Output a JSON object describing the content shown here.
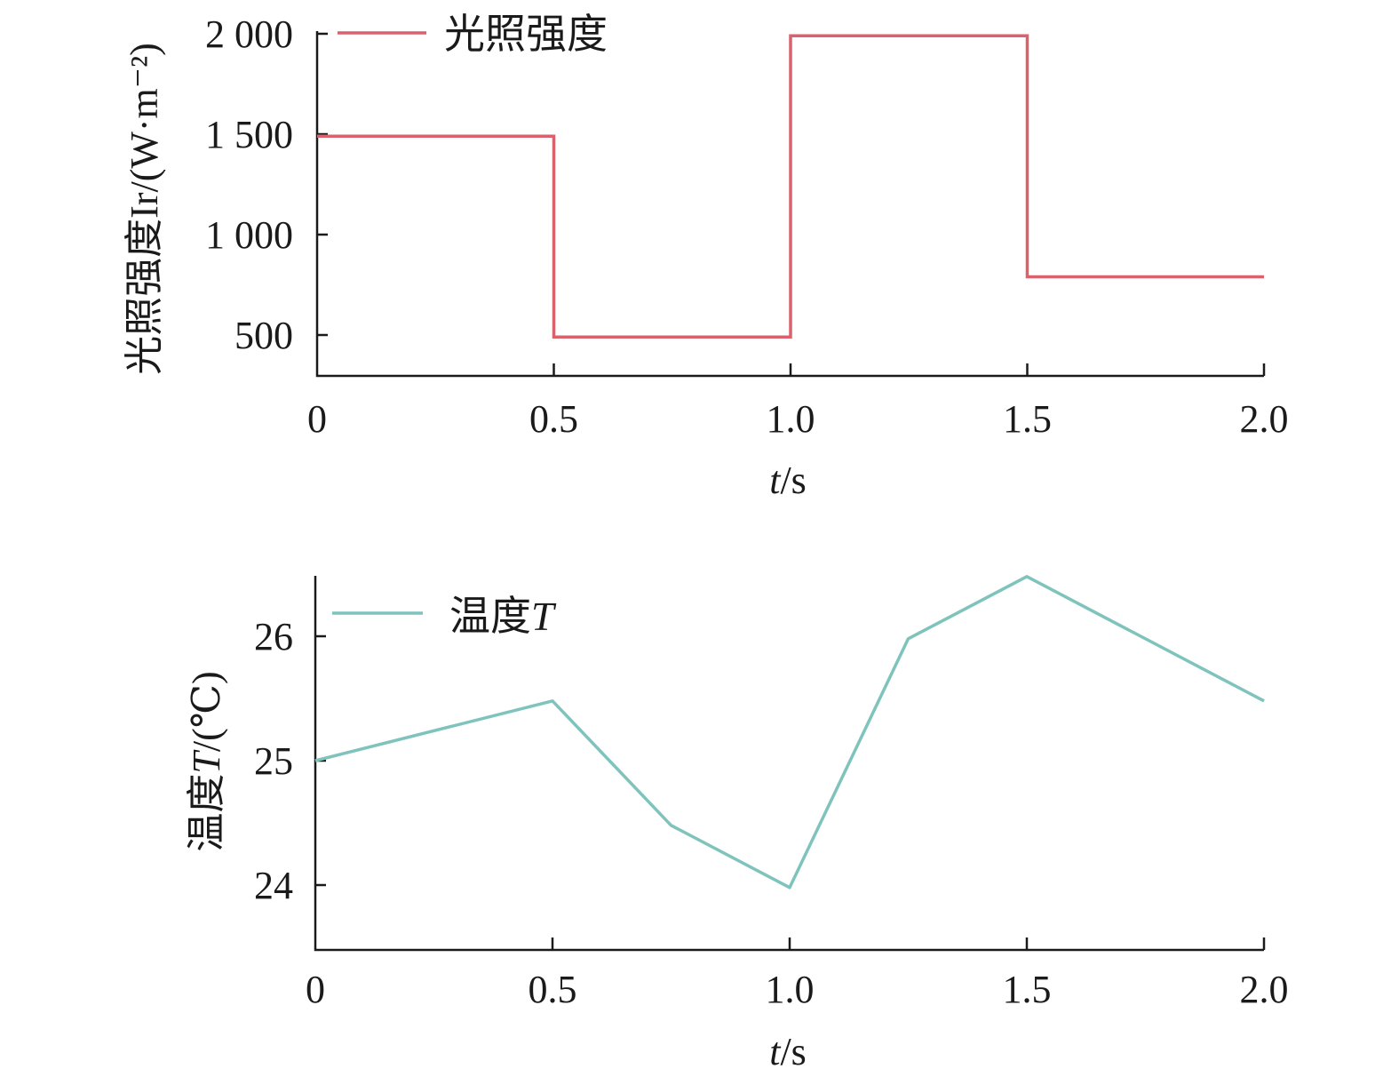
{
  "chart_data": [
    {
      "type": "line",
      "step": true,
      "x": [
        0,
        0.5,
        0.5,
        1.0,
        1.0,
        1.5,
        1.5,
        2.0
      ],
      "series": [
        {
          "name": "光照强度",
          "color": "#d9626c",
          "values": [
            1490,
            1490,
            490,
            490,
            1990,
            1990,
            790,
            790
          ]
        }
      ],
      "ylabel": "光照强度Ir/(W·m⁻²)",
      "xlabel_italic": "t",
      "xlabel_rest": "/s",
      "xlim": [
        0,
        2.0
      ],
      "ylim": [
        300,
        2000
      ],
      "xticks": [
        0,
        0.5,
        1.0,
        1.5,
        2.0
      ],
      "xtick_labels": [
        "0",
        "0.5",
        "1.0",
        "1.5",
        "2.0"
      ],
      "yticks": [
        500,
        1000,
        1500,
        2000
      ],
      "ytick_labels": [
        "500",
        "1 000",
        "1 500",
        "2 000"
      ],
      "grid": false,
      "legend_position": "top-left"
    },
    {
      "type": "line",
      "x": [
        0,
        0.5,
        0.75,
        1.0,
        1.25,
        1.5,
        2.0
      ],
      "series": [
        {
          "name_text": "温度",
          "name_italic": "T",
          "color": "#7fc3bd",
          "values": [
            25.0,
            25.48,
            24.48,
            23.98,
            25.98,
            26.48,
            25.48
          ]
        }
      ],
      "ylabel_text": "温度",
      "ylabel_italic": "T",
      "ylabel_unit": "/(℃)",
      "xlabel_italic": "t",
      "xlabel_rest": "/s",
      "xlim": [
        0,
        2.0
      ],
      "ylim": [
        23.5,
        26.5
      ],
      "xticks": [
        0,
        0.5,
        1.0,
        1.5,
        2.0
      ],
      "xtick_labels": [
        "0",
        "0.5",
        "1.0",
        "1.5",
        "2.0"
      ],
      "yticks": [
        24,
        25,
        26
      ],
      "ytick_labels": [
        "24",
        "25",
        "26"
      ],
      "grid": false,
      "legend_position": "top-left"
    }
  ]
}
